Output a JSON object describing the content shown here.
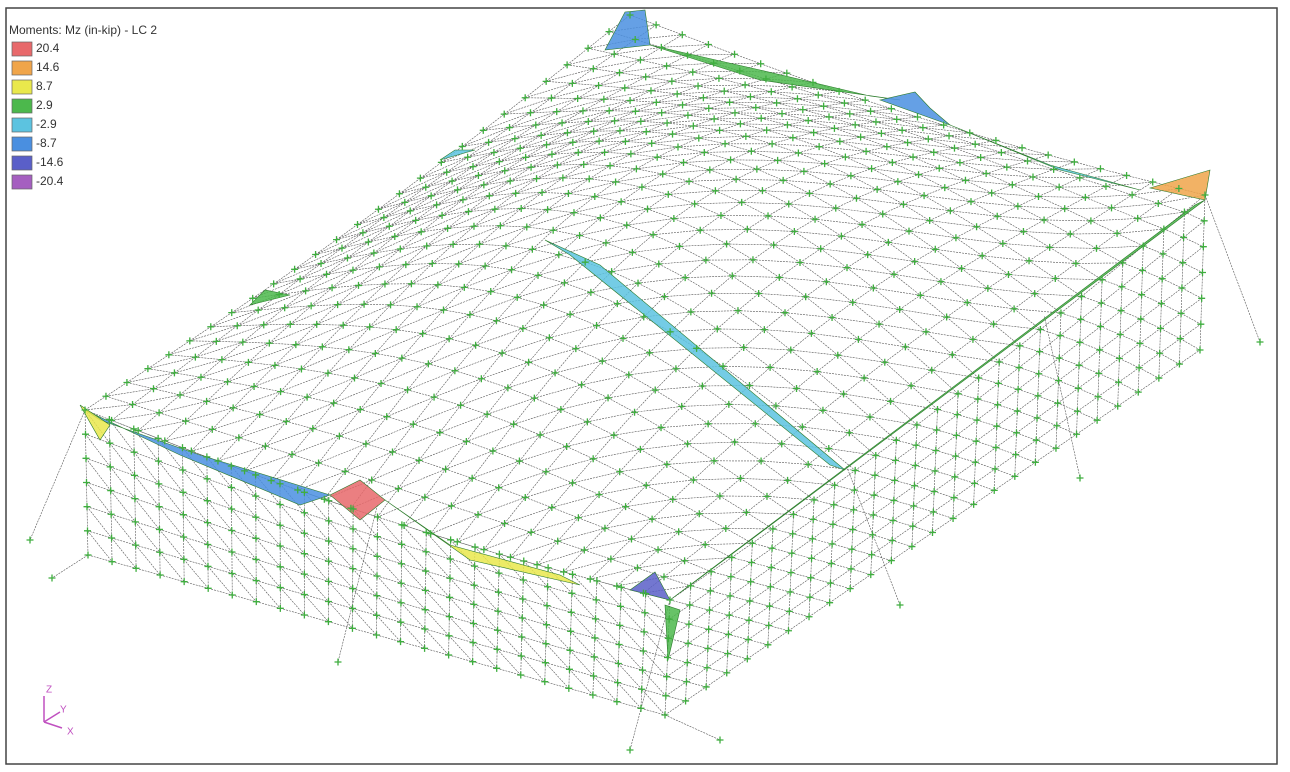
{
  "legend": {
    "title": "Moments: Mz (in-kip) - LC 2",
    "items": [
      {
        "label": "20.4",
        "color": "#e8696b"
      },
      {
        "label": "14.6",
        "color": "#f0a54a"
      },
      {
        "label": "8.7",
        "color": "#e9e84c"
      },
      {
        "label": "2.9",
        "color": "#4cb84c"
      },
      {
        "label": "-2.9",
        "color": "#5cc3e0"
      },
      {
        "label": "-8.7",
        "color": "#4a8fe0"
      },
      {
        "label": "-14.6",
        "color": "#5a5fc8"
      },
      {
        "label": "-20.4",
        "color": "#a55fc0"
      }
    ]
  },
  "axes": {
    "z": "Z",
    "y": "Y",
    "x": "X"
  }
}
